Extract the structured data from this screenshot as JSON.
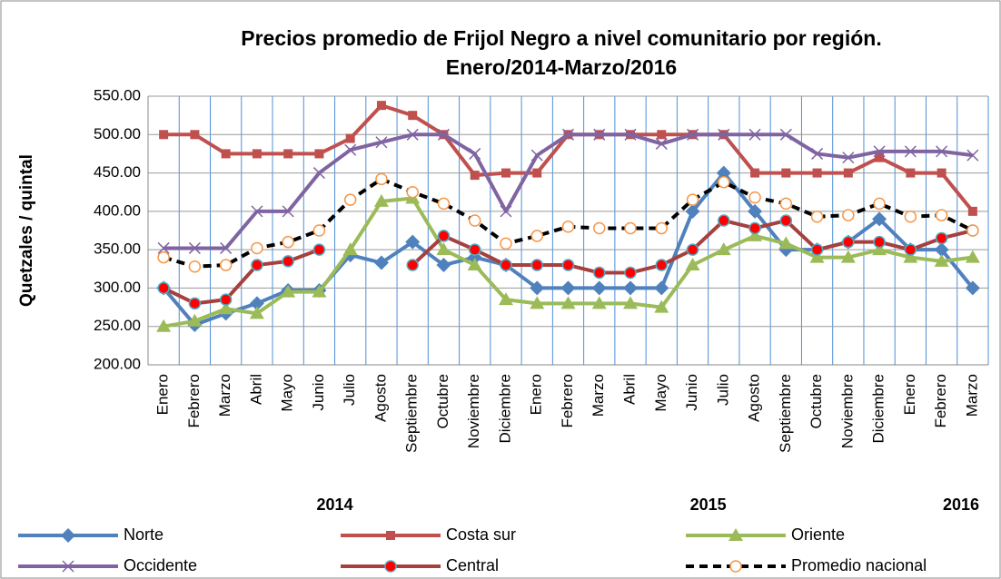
{
  "chart_data": {
    "type": "line",
    "title": "Precios promedio de Frijol Negro a nivel comunitario por región.",
    "subtitle": "Enero/2014-Marzo/2016",
    "y_label": "Quetzales / quintal",
    "categories": [
      "Enero",
      "Febrero",
      "Marzo",
      "Abril",
      "Mayo",
      "Junio",
      "Julio",
      "Agosto",
      "Septiembre",
      "Octubre",
      "Noviembre",
      "Diciembre",
      "Enero",
      "Febrero",
      "Marzo",
      "Abril",
      "Mayo",
      "Junio",
      "Julio",
      "Agosto",
      "Septiembre",
      "Octubre",
      "Noviembre",
      "Diciembre",
      "Enero",
      "Febrero",
      "Marzo"
    ],
    "x_groups": [
      "2014",
      "2015",
      "2016"
    ],
    "ylim": [
      200,
      550
    ],
    "yticks": [
      {
        "value": 200,
        "label": "200.00"
      },
      {
        "value": 250,
        "label": "250.00"
      },
      {
        "value": 300,
        "label": "300.00"
      },
      {
        "value": 350,
        "label": "350.00"
      },
      {
        "value": 400,
        "label": "400.00"
      },
      {
        "value": 450,
        "label": "450.00"
      },
      {
        "value": 500,
        "label": "500.00"
      },
      {
        "value": 550,
        "label": "550.00"
      }
    ],
    "grid": true,
    "series": [
      {
        "name": "Norte",
        "color": "#4f81bd",
        "marker": "diamond",
        "values": [
          300,
          252,
          267,
          280,
          297,
          297,
          343,
          333,
          360,
          330,
          340,
          330,
          300,
          300,
          300,
          300,
          300,
          400,
          450,
          400,
          350,
          350,
          360,
          390,
          350,
          350,
          300
        ]
      },
      {
        "name": "Costa sur",
        "color": "#c0504d",
        "marker": "square",
        "values": [
          500,
          500,
          475,
          475,
          475,
          475,
          495,
          538,
          525,
          500,
          447,
          450,
          450,
          500,
          500,
          500,
          500,
          500,
          500,
          450,
          450,
          450,
          450,
          470,
          450,
          450,
          400
        ]
      },
      {
        "name": "Oriente",
        "color": "#9bbb59",
        "marker": "triangle",
        "values": [
          250,
          257,
          273,
          267,
          295,
          295,
          350,
          413,
          417,
          350,
          330,
          285,
          280,
          280,
          280,
          280,
          275,
          330,
          350,
          368,
          358,
          340,
          340,
          350,
          340,
          335,
          340
        ]
      },
      {
        "name": "Occidente",
        "color": "#8064a2",
        "marker": "x",
        "values": [
          352,
          352,
          352,
          400,
          400,
          450,
          480,
          490,
          500,
          500,
          475,
          400,
          473,
          500,
          500,
          500,
          488,
          500,
          500,
          500,
          500,
          475,
          470,
          478,
          478,
          478,
          473
        ]
      },
      {
        "name": "Central",
        "color": "#a5403d",
        "marker": "dot",
        "values": [
          300,
          280,
          285,
          330,
          335,
          350,
          null,
          null,
          330,
          368,
          350,
          330,
          330,
          330,
          320,
          320,
          330,
          350,
          388,
          378,
          388,
          350,
          360,
          360,
          350,
          365,
          375
        ]
      },
      {
        "name": "Promedio nacional",
        "color": "#000000",
        "marker": "ring",
        "dashed": true,
        "values": [
          340,
          328,
          330,
          352,
          360,
          375,
          415,
          442,
          425,
          410,
          388,
          358,
          368,
          380,
          378,
          378,
          378,
          415,
          438,
          418,
          410,
          393,
          395,
          410,
          393,
          395,
          375
        ]
      }
    ]
  }
}
